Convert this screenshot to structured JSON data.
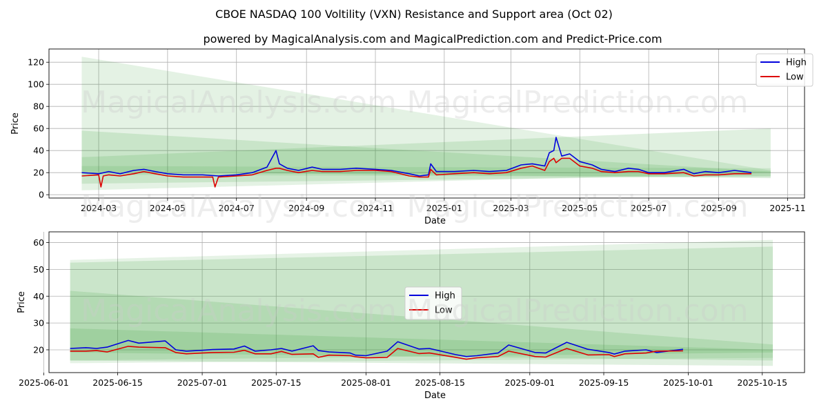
{
  "title": "CBOE NASDAQ 100 Voltility (VXN) Resistance and Support area (Oct 02)",
  "subtitle": "powered by MagicalAnalysis.com and MagicalPrediction.com and Predict-Price.com",
  "watermarks": [
    "MagicalAnalysis.com",
    "MagicalPrediction.com"
  ],
  "colors": {
    "high": "#0000dd",
    "low": "#dd0000",
    "band": "#2e9b2e",
    "grid": "#b0b0b0"
  },
  "chart_data": [
    {
      "type": "line",
      "xlabel": "Date",
      "ylabel": "Price",
      "xlim": [
        "2024-01-17",
        "2025-11-16"
      ],
      "ylim": [
        -3,
        132
      ],
      "xticks": [
        "2024-03",
        "2024-05",
        "2024-07",
        "2024-09",
        "2024-11",
        "2025-01",
        "2025-03",
        "2025-05",
        "2025-07",
        "2025-09",
        "2025-11"
      ],
      "xtick_dates": [
        "2024-03-01",
        "2024-05-01",
        "2024-07-01",
        "2024-09-01",
        "2024-11-01",
        "2025-01-01",
        "2025-03-01",
        "2025-05-01",
        "2025-07-01",
        "2025-09-01",
        "2025-11-01"
      ],
      "yticks": [
        0,
        20,
        40,
        60,
        80,
        100,
        120
      ],
      "legend": {
        "position": "top-right",
        "entries": [
          "High",
          "Low"
        ]
      },
      "bands": [
        {
          "start": "2024-02-15",
          "end": "2025-10-17",
          "start_range": [
            4,
            125
          ],
          "end_range": [
            20,
            22
          ],
          "alpha": 0.13
        },
        {
          "start": "2024-02-15",
          "end": "2025-10-17",
          "start_range": [
            10,
            58
          ],
          "end_range": [
            17,
            21
          ],
          "alpha": 0.15
        },
        {
          "start": "2024-02-15",
          "end": "2025-10-17",
          "start_range": [
            21,
            34
          ],
          "end_range": [
            15,
            60
          ],
          "alpha": 0.15
        },
        {
          "start": "2024-02-15",
          "end": "2025-10-17",
          "start_range": [
            18,
            26
          ],
          "end_range": [
            16,
            24
          ],
          "alpha": 0.12
        }
      ],
      "series": [
        {
          "name": "High",
          "x": [
            "2024-02-15",
            "2024-03-01",
            "2024-03-10",
            "2024-03-20",
            "2024-04-01",
            "2024-04-10",
            "2024-04-20",
            "2024-05-01",
            "2024-05-15",
            "2024-06-01",
            "2024-06-15",
            "2024-07-01",
            "2024-07-15",
            "2024-07-28",
            "2024-08-05",
            "2024-08-08",
            "2024-08-15",
            "2024-08-25",
            "2024-09-06",
            "2024-09-15",
            "2024-10-01",
            "2024-10-15",
            "2024-11-01",
            "2024-11-15",
            "2024-12-01",
            "2024-12-10",
            "2024-12-18",
            "2024-12-20",
            "2024-12-25",
            "2025-01-10",
            "2025-01-27",
            "2025-02-10",
            "2025-02-25",
            "2025-03-10",
            "2025-03-20",
            "2025-03-31",
            "2025-04-04",
            "2025-04-08",
            "2025-04-10",
            "2025-04-15",
            "2025-04-22",
            "2025-05-01",
            "2025-05-12",
            "2025-05-20",
            "2025-06-01",
            "2025-06-13",
            "2025-06-22",
            "2025-07-01",
            "2025-07-15",
            "2025-08-01",
            "2025-08-10",
            "2025-08-20",
            "2025-09-01",
            "2025-09-15",
            "2025-09-30"
          ],
          "values": [
            20,
            19,
            21,
            19,
            22,
            23,
            21,
            19,
            18,
            18,
            17,
            18,
            20,
            25,
            40,
            28,
            24,
            22,
            25,
            23,
            23,
            24,
            23,
            22,
            19,
            17,
            18,
            28,
            21,
            21,
            22,
            21,
            22,
            27,
            28,
            26,
            38,
            40,
            52,
            35,
            37,
            30,
            27,
            23,
            21,
            24,
            23,
            20,
            20,
            23,
            19,
            21,
            20,
            22,
            20
          ]
        },
        {
          "name": "Low",
          "x": [
            "2024-02-15",
            "2024-03-01",
            "2024-03-03",
            "2024-03-05",
            "2024-03-10",
            "2024-03-20",
            "2024-04-01",
            "2024-04-10",
            "2024-04-20",
            "2024-05-01",
            "2024-05-15",
            "2024-06-01",
            "2024-06-10",
            "2024-06-12",
            "2024-06-15",
            "2024-07-01",
            "2024-07-15",
            "2024-07-28",
            "2024-08-05",
            "2024-08-08",
            "2024-08-15",
            "2024-08-25",
            "2024-09-06",
            "2024-09-15",
            "2024-10-01",
            "2024-10-15",
            "2024-11-01",
            "2024-11-15",
            "2024-12-01",
            "2024-12-10",
            "2024-12-18",
            "2024-12-20",
            "2024-12-25",
            "2025-01-10",
            "2025-01-27",
            "2025-02-10",
            "2025-02-25",
            "2025-03-10",
            "2025-03-20",
            "2025-03-31",
            "2025-04-04",
            "2025-04-08",
            "2025-04-10",
            "2025-04-15",
            "2025-04-22",
            "2025-05-01",
            "2025-05-12",
            "2025-05-20",
            "2025-06-01",
            "2025-06-13",
            "2025-06-22",
            "2025-07-01",
            "2025-07-15",
            "2025-08-01",
            "2025-08-10",
            "2025-08-20",
            "2025-09-01",
            "2025-09-15",
            "2025-09-30"
          ],
          "values": [
            17,
            18,
            7,
            17,
            18,
            17,
            19,
            21,
            19,
            17,
            16,
            16,
            16,
            7,
            16,
            17,
            18,
            22,
            24,
            24,
            22,
            20,
            22,
            21,
            21,
            22,
            22,
            21,
            17,
            16,
            16,
            23,
            18,
            19,
            20,
            19,
            20,
            24,
            26,
            22,
            30,
            33,
            29,
            33,
            33,
            26,
            24,
            21,
            20,
            21,
            21,
            19,
            19,
            20,
            17,
            18,
            18,
            19,
            19
          ]
        }
      ]
    },
    {
      "type": "line",
      "xlabel": "Date",
      "ylabel": "Price",
      "xlim": [
        "2025-06-02",
        "2025-10-23"
      ],
      "ylim": [
        11.5,
        64
      ],
      "xticks": [
        "2025-06-01",
        "2025-06-15",
        "2025-07-01",
        "2025-07-15",
        "2025-08-01",
        "2025-08-15",
        "2025-09-01",
        "2025-09-15",
        "2025-10-01",
        "2025-10-15"
      ],
      "yticks": [
        20,
        30,
        40,
        50,
        60
      ],
      "legend": {
        "position": "center",
        "entries": [
          "High",
          "Low"
        ]
      },
      "bands": [
        {
          "start": "2025-06-06",
          "end": "2025-10-17",
          "start_range": [
            15,
            53.5
          ],
          "end_range": [
            17,
            61
          ],
          "alpha": 0.12
        },
        {
          "start": "2025-06-06",
          "end": "2025-10-17",
          "start_range": [
            16,
            52.5
          ],
          "end_range": [
            19,
            58.5
          ],
          "alpha": 0.15
        },
        {
          "start": "2025-06-06",
          "end": "2025-10-17",
          "start_range": [
            16,
            42
          ],
          "end_range": [
            14,
            22
          ],
          "alpha": 0.15
        },
        {
          "start": "2025-06-06",
          "end": "2025-10-17",
          "start_range": [
            19,
            28
          ],
          "end_range": [
            16,
            20
          ],
          "alpha": 0.15
        }
      ],
      "series": [
        {
          "name": "High",
          "x": [
            "2025-06-06",
            "2025-06-09",
            "2025-06-11",
            "2025-06-13",
            "2025-06-17",
            "2025-06-19",
            "2025-06-24",
            "2025-06-26",
            "2025-06-28",
            "2025-07-01",
            "2025-07-03",
            "2025-07-07",
            "2025-07-09",
            "2025-07-11",
            "2025-07-14",
            "2025-07-16",
            "2025-07-18",
            "2025-07-22",
            "2025-07-23",
            "2025-07-25",
            "2025-07-29",
            "2025-07-30",
            "2025-08-01",
            "2025-08-05",
            "2025-08-07",
            "2025-08-11",
            "2025-08-13",
            "2025-08-18",
            "2025-08-20",
            "2025-08-22",
            "2025-08-26",
            "2025-08-28",
            "2025-09-02",
            "2025-09-04",
            "2025-09-08",
            "2025-09-12",
            "2025-09-16",
            "2025-09-17",
            "2025-09-19",
            "2025-09-23",
            "2025-09-25",
            "2025-09-30"
          ],
          "values": [
            20.5,
            20.8,
            20.5,
            21,
            23.5,
            22.5,
            23.3,
            20,
            19.5,
            19.8,
            20.1,
            20.3,
            21.4,
            19.5,
            20,
            20.5,
            19.5,
            21.5,
            19.7,
            19.2,
            18.8,
            18,
            17.8,
            19.5,
            23,
            20.3,
            20.5,
            18.2,
            17.5,
            17.8,
            18.8,
            21.8,
            19,
            18.8,
            22.8,
            20.2,
            19,
            18.4,
            19.5,
            20,
            19,
            20.2
          ]
        },
        {
          "name": "Low",
          "x": [
            "2025-06-06",
            "2025-06-09",
            "2025-06-11",
            "2025-06-13",
            "2025-06-17",
            "2025-06-19",
            "2025-06-24",
            "2025-06-26",
            "2025-06-28",
            "2025-07-01",
            "2025-07-03",
            "2025-07-07",
            "2025-07-09",
            "2025-07-11",
            "2025-07-14",
            "2025-07-16",
            "2025-07-18",
            "2025-07-22",
            "2025-07-23",
            "2025-07-25",
            "2025-07-29",
            "2025-07-30",
            "2025-08-01",
            "2025-08-05",
            "2025-08-07",
            "2025-08-11",
            "2025-08-13",
            "2025-08-18",
            "2025-08-20",
            "2025-08-22",
            "2025-08-26",
            "2025-08-28",
            "2025-09-02",
            "2025-09-04",
            "2025-09-08",
            "2025-09-12",
            "2025-09-16",
            "2025-09-17",
            "2025-09-19",
            "2025-09-23",
            "2025-09-25",
            "2025-09-30"
          ],
          "values": [
            19.5,
            19.5,
            19.7,
            19.2,
            21.3,
            21,
            20.8,
            19,
            18.5,
            18.8,
            19,
            19.1,
            19.8,
            18.5,
            18.5,
            19.4,
            18.3,
            18.5,
            17.2,
            18,
            17.8,
            17.4,
            17,
            17.2,
            20.5,
            18.6,
            18.8,
            17.2,
            16.5,
            17,
            17.5,
            19.5,
            17.5,
            17.3,
            20.5,
            18.1,
            18.2,
            17.5,
            18.5,
            18.8,
            19.5,
            19.6
          ]
        }
      ]
    }
  ]
}
